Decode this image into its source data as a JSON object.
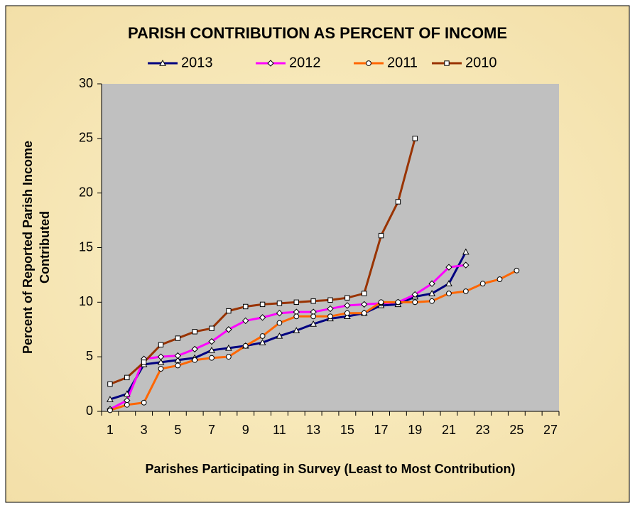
{
  "chart_data": {
    "type": "line",
    "title": "PARISH CONTRIBUTION AS PERCENT OF INCOME",
    "xlabel": "Parishes Participating in Survey (Least to Most Contribution)",
    "ylabel": [
      "Percent of Reported Parish Income",
      "Contributed"
    ],
    "categories": [
      1,
      null,
      3,
      null,
      5,
      null,
      7,
      null,
      9,
      null,
      11,
      null,
      13,
      null,
      15,
      null,
      17,
      null,
      19,
      null,
      21,
      null,
      23,
      null,
      25,
      null,
      27
    ],
    "ylim": [
      0,
      30
    ],
    "yticks": [
      0,
      5,
      10,
      15,
      20,
      25,
      30
    ],
    "grid": false,
    "legend": "top",
    "series": [
      {
        "name": "2013",
        "color": "#000080",
        "marker": "triangle",
        "values": [
          1.1,
          1.6,
          4.3,
          4.5,
          4.7,
          4.9,
          5.6,
          5.8,
          6.0,
          6.3,
          6.9,
          7.4,
          8.0,
          8.5,
          8.7,
          9.0,
          9.7,
          9.8,
          10.5,
          10.8,
          11.7,
          14.6,
          null,
          null,
          null,
          null,
          null
        ]
      },
      {
        "name": "2012",
        "color": "#ff00ff",
        "marker": "diamond",
        "values": [
          0.2,
          1.0,
          4.8,
          5.0,
          5.1,
          5.7,
          6.4,
          7.5,
          8.3,
          8.6,
          9.0,
          9.1,
          9.1,
          9.4,
          9.7,
          9.8,
          9.9,
          10.0,
          10.7,
          11.7,
          13.2,
          13.4,
          null,
          null,
          null,
          null,
          null
        ]
      },
      {
        "name": "2011",
        "color": "#ff6600",
        "marker": "circle",
        "values": [
          0.1,
          0.6,
          0.8,
          3.9,
          4.2,
          4.7,
          4.9,
          5.0,
          6.0,
          6.9,
          8.1,
          8.7,
          8.7,
          8.7,
          9.0,
          9.0,
          10.0,
          10.0,
          10.0,
          10.1,
          10.8,
          11.0,
          11.7,
          12.1,
          12.9,
          null,
          null
        ]
      },
      {
        "name": "2010",
        "color": "#993300",
        "marker": "square",
        "values": [
          2.5,
          3.1,
          4.5,
          6.1,
          6.7,
          7.3,
          7.6,
          9.2,
          9.6,
          9.8,
          9.9,
          10.0,
          10.1,
          10.2,
          10.4,
          10.8,
          16.1,
          19.2,
          25.0,
          null,
          null,
          null,
          null,
          null,
          null,
          null,
          null
        ]
      }
    ]
  }
}
